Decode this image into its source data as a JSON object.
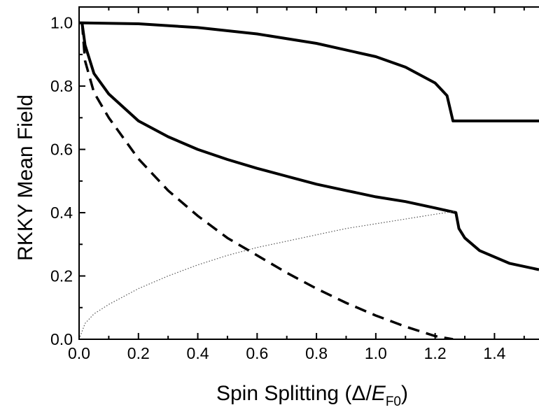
{
  "chart_data": {
    "type": "line",
    "title": "",
    "xlabel": {
      "prefix": "Spin Splitting (Δ/",
      "italic": "E",
      "subscript": "F0",
      "suffix": ")"
    },
    "ylabel": "RKKY Mean Field",
    "xlim": [
      0,
      1.55
    ],
    "ylim": [
      0,
      1.05
    ],
    "x_ticks": [
      0.0,
      0.2,
      0.4,
      0.6,
      0.8,
      1.0,
      1.2,
      1.4
    ],
    "x_tick_labels": [
      "0.0",
      "0.2",
      "0.4",
      "0.6",
      "0.8",
      "1.0",
      "1.2",
      "1.4"
    ],
    "y_ticks": [
      0.0,
      0.2,
      0.4,
      0.6,
      0.8,
      1.0
    ],
    "y_tick_labels": [
      "0.0",
      "0.2",
      "0.4",
      "0.6",
      "0.8",
      "1.0"
    ],
    "grid": false,
    "legend": "none",
    "series": [
      {
        "style": "solid",
        "color": "#000000",
        "points": [
          [
            0.0,
            1.0
          ],
          [
            0.2,
            0.997
          ],
          [
            0.4,
            0.985
          ],
          [
            0.6,
            0.965
          ],
          [
            0.8,
            0.935
          ],
          [
            1.0,
            0.893
          ],
          [
            1.1,
            0.86
          ],
          [
            1.2,
            0.81
          ],
          [
            1.24,
            0.77
          ],
          [
            1.26,
            0.69
          ],
          [
            1.55,
            0.69
          ]
        ]
      },
      {
        "style": "solid",
        "color": "#000000",
        "points": [
          [
            0.01,
            1.0
          ],
          [
            0.02,
            0.93
          ],
          [
            0.05,
            0.84
          ],
          [
            0.1,
            0.775
          ],
          [
            0.2,
            0.69
          ],
          [
            0.3,
            0.64
          ],
          [
            0.4,
            0.6
          ],
          [
            0.5,
            0.568
          ],
          [
            0.6,
            0.54
          ],
          [
            0.7,
            0.515
          ],
          [
            0.8,
            0.49
          ],
          [
            0.9,
            0.47
          ],
          [
            1.0,
            0.45
          ],
          [
            1.1,
            0.435
          ],
          [
            1.2,
            0.415
          ],
          [
            1.27,
            0.4
          ],
          [
            1.28,
            0.35
          ],
          [
            1.3,
            0.32
          ],
          [
            1.35,
            0.28
          ],
          [
            1.45,
            0.24
          ],
          [
            1.55,
            0.22
          ]
        ]
      },
      {
        "style": "dashed",
        "color": "#000000",
        "points": [
          [
            0.01,
            1.0
          ],
          [
            0.02,
            0.88
          ],
          [
            0.05,
            0.78
          ],
          [
            0.1,
            0.7
          ],
          [
            0.2,
            0.57
          ],
          [
            0.3,
            0.47
          ],
          [
            0.4,
            0.39
          ],
          [
            0.5,
            0.32
          ],
          [
            0.6,
            0.265
          ],
          [
            0.7,
            0.21
          ],
          [
            0.8,
            0.16
          ],
          [
            0.9,
            0.115
          ],
          [
            1.0,
            0.075
          ],
          [
            1.1,
            0.04
          ],
          [
            1.2,
            0.01
          ],
          [
            1.26,
            0.0
          ]
        ]
      },
      {
        "style": "dotted",
        "color": "#555555",
        "points": [
          [
            0.0,
            0.0
          ],
          [
            0.02,
            0.05
          ],
          [
            0.05,
            0.08
          ],
          [
            0.1,
            0.11
          ],
          [
            0.2,
            0.16
          ],
          [
            0.3,
            0.2
          ],
          [
            0.4,
            0.235
          ],
          [
            0.5,
            0.265
          ],
          [
            0.6,
            0.29
          ],
          [
            0.7,
            0.31
          ],
          [
            0.8,
            0.33
          ],
          [
            0.9,
            0.35
          ],
          [
            1.0,
            0.365
          ],
          [
            1.1,
            0.38
          ],
          [
            1.2,
            0.395
          ],
          [
            1.27,
            0.405
          ]
        ]
      }
    ]
  }
}
